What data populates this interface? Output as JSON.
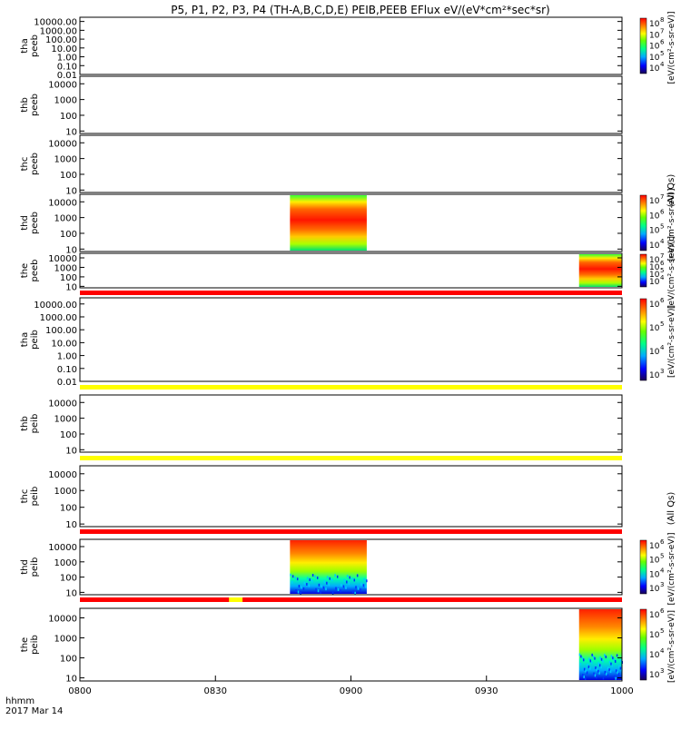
{
  "title": "P5, P1, P2, P3, P4 (TH-A,B,C,D,E) PEIB,PEEB EFlux eV/(eV*cm²*sec*sr)",
  "footer": {
    "time_label": "hhmm",
    "date_label": "2017 Mar 14"
  },
  "colors": {
    "flag_red": "#ff0000",
    "flag_yellow": "#ffff00",
    "colormap": "rainbow"
  },
  "chart_data": {
    "type": "heatmap",
    "x_ticks": [
      "0800",
      "0830",
      "0900",
      "0930",
      "1000"
    ],
    "x_minutes": [
      0,
      30,
      60,
      90,
      120
    ],
    "xlim": [
      0,
      120
    ],
    "panels": [
      {
        "probe": "tha",
        "species": "peeb",
        "y_ticks": [
          "10000.00",
          "1000.00",
          "100.00",
          "10.00",
          "1.00",
          "0.10",
          "0.01"
        ],
        "ylim": [
          0.01,
          30000
        ],
        "cbar": true,
        "cbar_ticks": [
          "8",
          "7",
          "6",
          "5",
          "4"
        ],
        "cbar_label": "[eV/(cm²-s-sr-eV)]",
        "blocks": []
      },
      {
        "probe": "thb",
        "species": "peeb",
        "y_ticks": [
          "10000",
          "1000",
          "100",
          "10"
        ],
        "ylim": [
          7,
          30000
        ],
        "cbar": false,
        "blocks": []
      },
      {
        "probe": "thc",
        "species": "peeb",
        "y_ticks": [
          "10000",
          "1000",
          "100",
          "10"
        ],
        "ylim": [
          7,
          30000
        ],
        "cbar": false,
        "blocks": []
      },
      {
        "probe": "thd",
        "species": "peeb",
        "y_ticks": [
          "10000",
          "1000",
          "100",
          "10"
        ],
        "ylim": [
          7,
          30000
        ],
        "cbar": true,
        "cbar_ticks": [
          "7",
          "6",
          "5",
          "4"
        ],
        "cbar_label": "[eV/(cm²-s-sr-eV)]",
        "blocks": [
          {
            "x0": 46.5,
            "x1": 63.5,
            "kind": "electron"
          }
        ]
      },
      {
        "probe": "the",
        "species": "peeb",
        "y_ticks": [
          "10000",
          "1000",
          "100",
          "10"
        ],
        "ylim": [
          7,
          30000
        ],
        "cbar": true,
        "cbar_ticks": [
          "7",
          "6",
          "5",
          "4"
        ],
        "cbar_label": "[eV/(cm²-s-sr-eV)]",
        "blocks": [
          {
            "x0": 110.5,
            "x1": 120,
            "kind": "electron"
          }
        ]
      },
      {
        "probe": "tha",
        "species": "peib",
        "y_ticks": [
          "10000.00",
          "1000.00",
          "100.00",
          "10.00",
          "1.00",
          "0.10",
          "0.01"
        ],
        "ylim": [
          0.01,
          30000
        ],
        "cbar": true,
        "cbar_ticks": [
          "6",
          "5",
          "4",
          "3"
        ],
        "cbar_label": "[eV/(cm²-s-sr-eV)]",
        "blocks": []
      },
      {
        "probe": "thb",
        "species": "peib",
        "y_ticks": [
          "10000",
          "1000",
          "100",
          "10"
        ],
        "ylim": [
          7,
          30000
        ],
        "cbar": false,
        "blocks": []
      },
      {
        "probe": "thc",
        "species": "peib",
        "y_ticks": [
          "10000",
          "1000",
          "100",
          "10"
        ],
        "ylim": [
          7,
          30000
        ],
        "cbar": false,
        "blocks": []
      },
      {
        "probe": "thd",
        "species": "peib",
        "y_ticks": [
          "10000",
          "1000",
          "100",
          "10"
        ],
        "ylim": [
          7,
          30000
        ],
        "cbar": true,
        "cbar_ticks": [
          "6",
          "5",
          "4",
          "3"
        ],
        "cbar_label": "[eV/(cm²-s-sr-eV)]",
        "blocks": [
          {
            "x0": 46.5,
            "x1": 63.5,
            "kind": "ion"
          }
        ]
      },
      {
        "probe": "the",
        "species": "peib",
        "y_ticks": [
          "10000",
          "1000",
          "100",
          "10"
        ],
        "ylim": [
          7,
          30000
        ],
        "cbar": true,
        "cbar_ticks": [
          "6",
          "5",
          "4",
          "3"
        ],
        "cbar_label": "[eV/(cm²-s-sr-eV)]",
        "blocks": [
          {
            "x0": 110.5,
            "x1": 120,
            "kind": "ion"
          }
        ]
      }
    ],
    "flag_bars": [
      {
        "below_panel": 4,
        "color": "flag_red"
      },
      {
        "below_panel": 5,
        "color": "flag_yellow"
      },
      {
        "below_panel": 6,
        "color": "flag_yellow"
      },
      {
        "below_panel": 7,
        "color": "flag_red"
      },
      {
        "below_panel": 8,
        "color": "flag_red",
        "segments": [
          {
            "x0": 33,
            "x1": 36,
            "color": "flag_yellow"
          }
        ]
      }
    ],
    "side_labels": [
      "(All Qs)",
      "(All Qs)"
    ]
  }
}
